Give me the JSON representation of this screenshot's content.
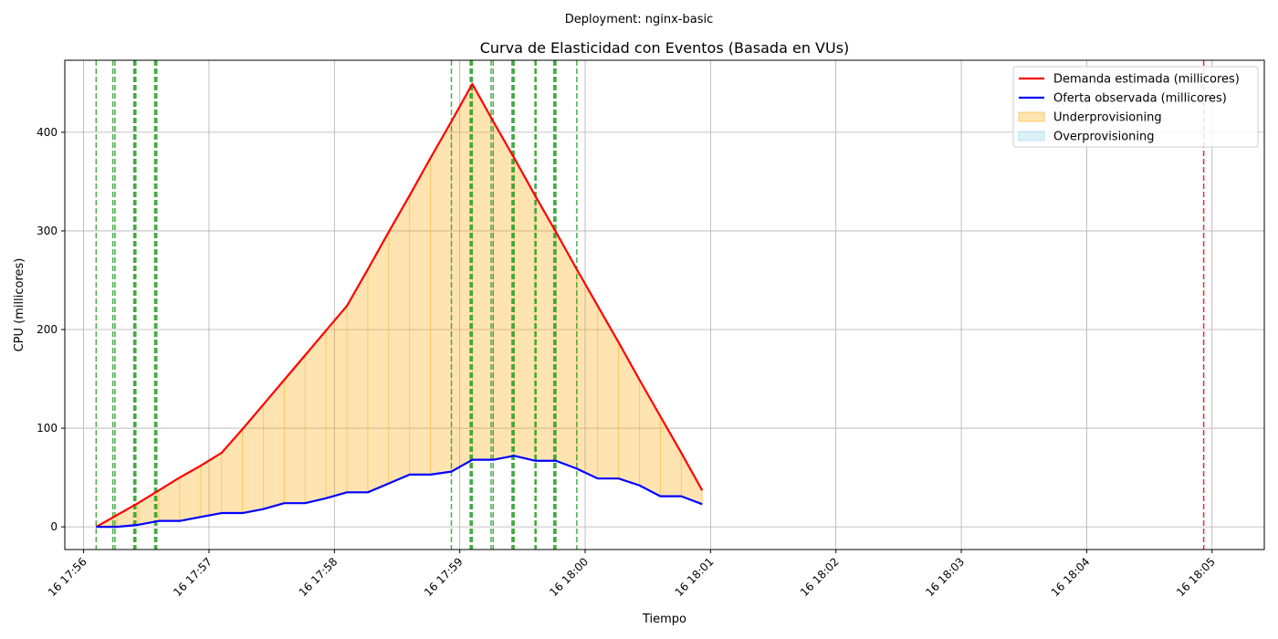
{
  "chart_data": {
    "type": "line",
    "suptitle": "Deployment: nginx-basic",
    "title": "Curva de Elasticidad con Eventos (Basada en VUs)",
    "xlabel": "Tiempo",
    "ylabel": "CPU (millicores)",
    "xlim": [
      "17:55:51",
      "18:05:25"
    ],
    "ylim": [
      -23,
      473
    ],
    "y_ticks": [
      0,
      100,
      200,
      300,
      400
    ],
    "x_ticks": [
      {
        "t": "17:56:00",
        "label": "16 17:56"
      },
      {
        "t": "17:57:00",
        "label": "16 17:57"
      },
      {
        "t": "17:58:00",
        "label": "16 17:58"
      },
      {
        "t": "17:59:00",
        "label": "16 17:59"
      },
      {
        "t": "18:00:00",
        "label": "16 18:00"
      },
      {
        "t": "18:01:00",
        "label": "16 18:01"
      },
      {
        "t": "18:02:00",
        "label": "16 18:02"
      },
      {
        "t": "18:03:00",
        "label": "16 18:03"
      },
      {
        "t": "18:04:00",
        "label": "16 18:04"
      },
      {
        "t": "18:05:00",
        "label": "16 18:05"
      }
    ],
    "grid": true,
    "legend_position": "top-right",
    "series": [
      {
        "name": "Demanda estimada (millicores)",
        "color": "#ff0000",
        "points": [
          [
            "17:56:06",
            0
          ],
          [
            "17:56:16",
            12
          ],
          [
            "17:56:26",
            24
          ],
          [
            "17:56:36",
            37
          ],
          [
            "17:56:46",
            50
          ],
          [
            "17:56:56",
            62
          ],
          [
            "17:57:06",
            75
          ],
          [
            "17:57:16",
            99
          ],
          [
            "17:57:26",
            124
          ],
          [
            "17:57:36",
            149
          ],
          [
            "17:57:46",
            174
          ],
          [
            "17:57:56",
            199
          ],
          [
            "17:58:06",
            224
          ],
          [
            "17:58:16",
            261
          ],
          [
            "17:58:26",
            299
          ],
          [
            "17:58:36",
            336
          ],
          [
            "17:58:46",
            374
          ],
          [
            "17:58:56",
            411
          ],
          [
            "17:59:06",
            449
          ],
          [
            "17:59:16",
            411
          ],
          [
            "17:59:26",
            374
          ],
          [
            "17:59:36",
            336
          ],
          [
            "17:59:46",
            299
          ],
          [
            "17:59:56",
            261
          ],
          [
            "18:00:06",
            224
          ],
          [
            "18:00:16",
            187
          ],
          [
            "18:00:26",
            149
          ],
          [
            "18:00:36",
            112
          ],
          [
            "18:00:46",
            75
          ],
          [
            "18:00:56",
            37
          ]
        ]
      },
      {
        "name": "Oferta observada (millicores)",
        "color": "#0000ff",
        "points": [
          [
            "17:56:06",
            0
          ],
          [
            "17:56:16",
            0
          ],
          [
            "17:56:26",
            2
          ],
          [
            "17:56:36",
            6
          ],
          [
            "17:56:46",
            6
          ],
          [
            "17:56:56",
            10
          ],
          [
            "17:57:06",
            14
          ],
          [
            "17:57:16",
            14
          ],
          [
            "17:57:26",
            18
          ],
          [
            "17:57:36",
            24
          ],
          [
            "17:57:46",
            24
          ],
          [
            "17:57:56",
            29
          ],
          [
            "17:58:06",
            35
          ],
          [
            "17:58:16",
            35
          ],
          [
            "17:58:26",
            44
          ],
          [
            "17:58:36",
            53
          ],
          [
            "17:58:46",
            53
          ],
          [
            "17:58:56",
            56
          ],
          [
            "17:59:06",
            68
          ],
          [
            "17:59:16",
            68
          ],
          [
            "17:59:26",
            72
          ],
          [
            "17:59:36",
            67
          ],
          [
            "17:59:46",
            67
          ],
          [
            "17:59:56",
            59
          ],
          [
            "18:00:06",
            49
          ],
          [
            "18:00:16",
            49
          ],
          [
            "18:00:26",
            42
          ],
          [
            "18:00:36",
            31
          ],
          [
            "18:00:46",
            31
          ],
          [
            "18:00:56",
            23
          ]
        ]
      }
    ],
    "fills": [
      {
        "name": "Underprovisioning",
        "color": "#ffa500",
        "opacity": 0.3
      },
      {
        "name": "Overprovisioning",
        "color": "#87ceeb",
        "opacity": 0.3
      }
    ],
    "event_lines": {
      "green": {
        "color": "#2ca02c",
        "times": [
          "17:56:06",
          "17:56:14",
          "17:56:15",
          "17:56:24",
          "17:56:24.5",
          "17:56:25",
          "17:56:34",
          "17:56:34.5",
          "17:56:35",
          "17:58:56",
          "17:59:05",
          "17:59:05.5",
          "17:59:06",
          "17:59:15",
          "17:59:16",
          "17:59:25",
          "17:59:25.5",
          "17:59:26",
          "17:59:36",
          "17:59:36.5",
          "17:59:45",
          "17:59:45.5",
          "17:59:46",
          "17:59:56"
        ]
      },
      "red": {
        "color": "#ff0000",
        "times": [
          "18:04:56"
        ]
      }
    }
  }
}
